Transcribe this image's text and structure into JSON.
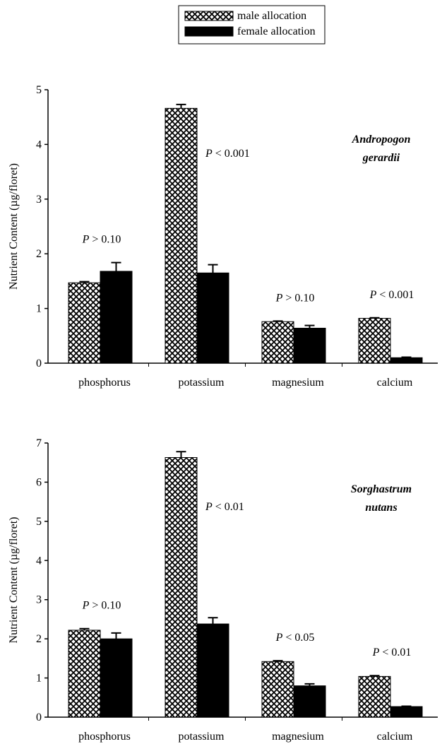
{
  "chart_data": [
    {
      "type": "bar",
      "species": [
        "Andropogon",
        "gerardii"
      ],
      "y_label": "Nutrient Content (µg/floret)",
      "categories": [
        "phosphorus",
        "potassium",
        "magnesium",
        "calcium"
      ],
      "series": [
        {
          "name": "male allocation",
          "color": "#000000",
          "hatch": true,
          "values": [
            1.47,
            4.66,
            0.76,
            0.82
          ],
          "errors": [
            0.02,
            0.07,
            0.01,
            0.01
          ]
        },
        {
          "name": "female allocation",
          "color": "#000000",
          "hatch": false,
          "values": [
            1.68,
            1.65,
            0.64,
            0.1
          ],
          "errors": [
            0.16,
            0.15,
            0.05,
            0.01
          ]
        }
      ],
      "p_values": [
        "P > 0.10",
        "P < 0.001",
        "P > 0.10",
        "P < 0.001"
      ],
      "ylim": [
        0,
        5
      ],
      "yticks": [
        0,
        1,
        2,
        3,
        4,
        5
      ]
    },
    {
      "type": "bar",
      "species": [
        "Sorghastrum",
        "nutans"
      ],
      "y_label": "Nutrient Content (µg/floret)",
      "categories": [
        "phosphorus",
        "potassium",
        "magnesium",
        "calcium"
      ],
      "series": [
        {
          "color": "#000000",
          "hatch": true,
          "values": [
            2.22,
            6.63,
            1.42,
            1.04
          ],
          "errors": [
            0.04,
            0.15,
            0.02,
            0.02
          ]
        },
        {
          "color": "#000000",
          "hatch": false,
          "values": [
            2.0,
            2.38,
            0.8,
            0.27
          ],
          "errors": [
            0.15,
            0.16,
            0.05,
            0.01
          ]
        }
      ],
      "p_values": [
        "P > 0.10",
        "P < 0.01",
        "P < 0.05",
        "P < 0.01"
      ],
      "ylim": [
        0,
        7
      ],
      "yticks": [
        0,
        1,
        2,
        3,
        4,
        5,
        6,
        7
      ]
    }
  ]
}
